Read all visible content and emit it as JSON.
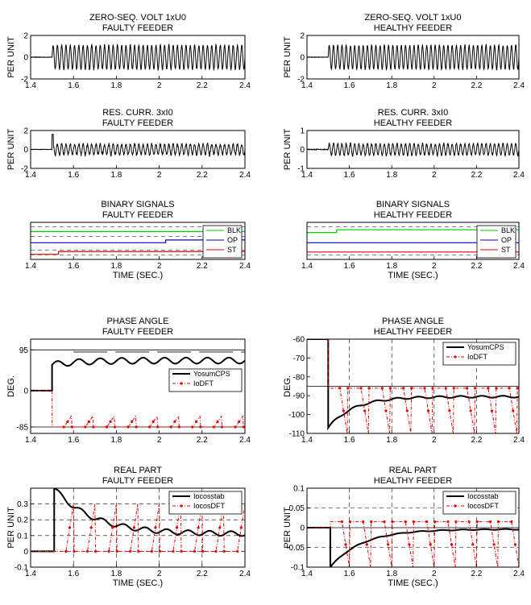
{
  "figure": {
    "xlabel": "TIME (SEC.)"
  },
  "colors": {
    "green": "#00cc00",
    "blue": "#0000ee",
    "red": "#ee0000",
    "black": "#000000"
  },
  "chart_data": [
    {
      "id": "zsv-faulty",
      "type": "line",
      "title": "ZERO-SEQ. VOLT 1xU0",
      "subtitle": "FAULTY FEEDER",
      "xlabel": "",
      "ylabel": "PER UNIT",
      "xlim": [
        1.4,
        2.4
      ],
      "ylim": [
        -2,
        2
      ],
      "xticks": [
        "1.4",
        "1.6",
        "1.8",
        "2",
        "2.2",
        "2.4"
      ],
      "yticks": [
        "-2",
        "0",
        "2"
      ],
      "grid": false,
      "series": [
        {
          "type": "oscillation",
          "color": "#000000",
          "t_start": 1.5,
          "amplitude": 1.1,
          "cycles": 45,
          "noise": 0.1,
          "offset": 0
        }
      ]
    },
    {
      "id": "zsv-healthy",
      "type": "line",
      "title": "ZERO-SEQ. VOLT 1xU0",
      "subtitle": "HEALTHY FEEDER",
      "xlabel": "",
      "ylabel": "PER UNIT",
      "xlim": [
        1.4,
        2.4
      ],
      "ylim": [
        -2,
        2
      ],
      "xticks": [
        "1.4",
        "1.6",
        "1.8",
        "2",
        "2.2",
        "2.4"
      ],
      "yticks": [
        "-2",
        "0",
        "2"
      ],
      "grid": false,
      "series": [
        {
          "type": "oscillation",
          "color": "#000000",
          "t_start": 1.5,
          "amplitude": 1.1,
          "cycles": 45,
          "noise": 0.1,
          "offset": 0
        }
      ]
    },
    {
      "id": "res-faulty",
      "type": "line",
      "title": "RES. CURR. 3xI0",
      "subtitle": "FAULTY FEEDER",
      "xlabel": "",
      "ylabel": "PER UNIT",
      "xlim": [
        1.4,
        2.4
      ],
      "ylim": [
        -2,
        2
      ],
      "xticks": [
        "1.4",
        "1.6",
        "1.8",
        "2",
        "2.2",
        "2.4"
      ],
      "yticks": [
        "-2",
        "0",
        "2"
      ],
      "hlines": [
        2,
        -2
      ],
      "grid": false,
      "series": [
        {
          "type": "oscillation",
          "color": "#000000",
          "t_start": 1.5,
          "amplitude": 0.55,
          "cycles": 45,
          "noise": 0.35,
          "offset": 0,
          "spike": 1.6
        }
      ]
    },
    {
      "id": "res-healthy",
      "type": "line",
      "title": "RES. CURR. 3xI0",
      "subtitle": "HEALTHY FEEDER",
      "xlabel": "",
      "ylabel": "PER UNIT",
      "xlim": [
        1.4,
        2.4
      ],
      "ylim": [
        -1,
        1
      ],
      "xticks": [
        "1.4",
        "1.6",
        "1.8",
        "2",
        "2.2",
        "2.4"
      ],
      "yticks": [
        "-1",
        "0",
        "1"
      ],
      "hlines": [
        1,
        -1
      ],
      "grid": false,
      "series": [
        {
          "type": "oscillation",
          "color": "#000000",
          "t_start": 1.5,
          "amplitude": 0.3,
          "cycles": 45,
          "noise": 0.15,
          "offset": 0
        }
      ]
    },
    {
      "id": "bin-faulty",
      "type": "line",
      "title": "BINARY SIGNALS",
      "subtitle": "FAULTY FEEDER",
      "xlabel": "TIME (SEC.)",
      "ylabel": "",
      "xlim": [
        1.4,
        2.4
      ],
      "ylim": [
        0,
        4
      ],
      "xticks": [
        "1.4",
        "1.6",
        "1.8",
        "2",
        "2.2",
        "2.4"
      ],
      "yticks": [],
      "hlines": [
        3.5,
        2.5,
        1.0,
        0.5
      ],
      "grid": false,
      "legend": {
        "position": "top-right",
        "entries": [
          {
            "label": "BLK",
            "color": "#00cc00"
          },
          {
            "label": "OP",
            "color": "#0000ee"
          },
          {
            "label": "ST",
            "color": "#ee0000"
          }
        ]
      },
      "series": [
        {
          "type": "step",
          "name": "BLK",
          "color": "#00cc00",
          "x": [
            1.4,
            2.4
          ],
          "y": [
            3.0,
            3.0
          ]
        },
        {
          "type": "step",
          "name": "OP",
          "color": "#0000ee",
          "x": [
            1.4,
            2.03,
            2.03,
            2.4
          ],
          "y": [
            1.8,
            1.8,
            2.1,
            2.1
          ]
        },
        {
          "type": "step",
          "name": "ST",
          "color": "#ee0000",
          "x": [
            1.4,
            1.53,
            1.53,
            2.4
          ],
          "y": [
            0.55,
            0.55,
            0.85,
            0.85
          ]
        }
      ]
    },
    {
      "id": "bin-healthy",
      "type": "line",
      "title": "BINARY SIGNALS",
      "subtitle": "HEALTHY FEEDER",
      "xlabel": "TIME (SEC.)",
      "ylabel": "",
      "xlim": [
        1.4,
        2.4
      ],
      "ylim": [
        0,
        4
      ],
      "xticks": [
        "1.4",
        "1.6",
        "1.8",
        "2",
        "2.2",
        "2.4"
      ],
      "yticks": [],
      "hlines": [
        3.5,
        0.5
      ],
      "grid": false,
      "legend": {
        "position": "top-right",
        "entries": [
          {
            "label": "BLK",
            "color": "#00cc00"
          },
          {
            "label": "OP",
            "color": "#0000ee"
          },
          {
            "label": "ST",
            "color": "#ee0000"
          }
        ]
      },
      "series": [
        {
          "type": "step",
          "name": "BLK",
          "color": "#00cc00",
          "x": [
            1.4,
            1.54,
            1.54,
            2.4
          ],
          "y": [
            2.9,
            2.9,
            3.2,
            3.2
          ]
        },
        {
          "type": "step",
          "name": "OP",
          "color": "#0000ee",
          "x": [
            1.4,
            2.4
          ],
          "y": [
            1.8,
            1.8
          ]
        },
        {
          "type": "step",
          "name": "ST",
          "color": "#ee0000",
          "x": [
            1.4,
            2.4
          ],
          "y": [
            0.8,
            0.8
          ]
        }
      ]
    },
    {
      "id": "phase-faulty",
      "type": "line",
      "title": "PHASE ANGLE",
      "subtitle": "FAULTY FEEDER",
      "xlabel": "",
      "ylabel": "DEG.",
      "xlim": [
        1.4,
        2.4
      ],
      "ylim": [
        -100,
        120
      ],
      "xticks": [
        "1.4",
        "1.6",
        "1.8",
        "2",
        "2.2",
        "2.4"
      ],
      "yticks": [
        "-85",
        "0",
        "95"
      ],
      "ytick_values": [
        -85,
        0,
        95
      ],
      "hlines_solid": [
        95,
        -85
      ],
      "dash_line": {
        "y": 90
      },
      "grid": false,
      "legend": {
        "position": "right",
        "entries": [
          {
            "label": "YosumCPS",
            "color": "#000000",
            "style": "solid"
          },
          {
            "label": "IoDFT",
            "color": "#ee0000",
            "style": "dashdot"
          }
        ]
      },
      "series": [
        {
          "type": "decay",
          "name": "YosumCPS",
          "color": "#000000",
          "t_start": 1.5,
          "y_start": 0,
          "y_peak": 60,
          "y_final": 70,
          "ripple": 7,
          "tau": 0.12
        },
        {
          "type": "sawtooth",
          "name": "IoDFT",
          "color": "#ee0000",
          "t_start": 1.5,
          "y_pre": 0,
          "base": -85,
          "top": -60,
          "period": 0.1
        }
      ]
    },
    {
      "id": "phase-healthy",
      "type": "line",
      "title": "PHASE ANGLE",
      "subtitle": "HEALTHY FEEDER",
      "xlabel": "",
      "ylabel": "DEG.",
      "xlim": [
        1.4,
        2.4
      ],
      "ylim": [
        -110,
        -60
      ],
      "xticks": [
        "1.4",
        "1.6",
        "1.8",
        "2",
        "2.2",
        "2.4"
      ],
      "yticks": [
        "-110",
        "-100",
        "-90",
        "-80",
        "-70",
        "-60"
      ],
      "ytick_values": [
        -110,
        -100,
        -90,
        -80,
        -70,
        -60
      ],
      "hlines_solid": [
        -85
      ],
      "vgrid_dashed": true,
      "grid": false,
      "legend": {
        "position": "top-right",
        "entries": [
          {
            "label": "YosumCPS",
            "color": "#000000",
            "style": "solid"
          },
          {
            "label": "IoDFT",
            "color": "#ee0000",
            "style": "dashdot"
          }
        ]
      },
      "series": [
        {
          "type": "decay",
          "name": "YosumCPS",
          "color": "#000000",
          "t_start": 1.5,
          "y_start": -60,
          "y_peak": -107,
          "y_final": -90.5,
          "ripple": 0.5,
          "tau": 0.12
        },
        {
          "type": "sawtooth",
          "name": "IoDFT",
          "color": "#ee0000",
          "t_start": 1.5,
          "y_pre": -60,
          "base": -86,
          "top": -110,
          "period": 0.1,
          "inverted": true
        }
      ]
    },
    {
      "id": "real-faulty",
      "type": "line",
      "title": "REAL PART",
      "subtitle": "FAULTY FEEDER",
      "xlabel": "TIME (SEC.)",
      "ylabel": "PER UNIT",
      "xlim": [
        1.4,
        2.4
      ],
      "ylim": [
        -0.1,
        0.4
      ],
      "xticks": [
        "1.4",
        "1.6",
        "1.8",
        "2",
        "2.2",
        "2.4"
      ],
      "yticks": [
        "-0.1",
        "0",
        "0.1",
        "0.2",
        "0.3"
      ],
      "ytick_values": [
        -0.1,
        0,
        0.1,
        0.2,
        0.3
      ],
      "hgrid_dashed": [
        0,
        0.1,
        0.2,
        0.3
      ],
      "vgrid_dashed": true,
      "grid": true,
      "legend": {
        "position": "top-right",
        "entries": [
          {
            "label": "Iocosstab",
            "color": "#000000",
            "style": "solid"
          },
          {
            "label": "IocosDFT",
            "color": "#ee0000",
            "style": "dashdot"
          }
        ]
      },
      "series": [
        {
          "type": "decay",
          "name": "Iocosstab",
          "color": "#000000",
          "t_start": 1.51,
          "y_start": 0,
          "y_peak": 0.4,
          "y_final": 0.11,
          "ripple": 0.015,
          "tau": 0.18
        },
        {
          "type": "sawtooth",
          "name": "IocosDFT",
          "color": "#ee0000",
          "t_start": 1.51,
          "y_pre": 0,
          "base": 0.0,
          "top": 0.3,
          "period": 0.1
        }
      ]
    },
    {
      "id": "real-healthy",
      "type": "line",
      "title": "REAL PART",
      "subtitle": "HEALTHY FEEDER",
      "xlabel": "TIME (SEC.)",
      "ylabel": "PER UNIT",
      "xlim": [
        1.4,
        2.4
      ],
      "ylim": [
        -0.1,
        0.1
      ],
      "xticks": [
        "1.4",
        "1.6",
        "1.8",
        "2",
        "2.2",
        "2.4"
      ],
      "yticks": [
        "-0.1",
        "-0.05",
        "0",
        "0.05",
        "0.1"
      ],
      "ytick_values": [
        -0.1,
        -0.05,
        0,
        0.05,
        0.1
      ],
      "hgrid_dashed": [
        0.05,
        -0.05
      ],
      "hlines_solid": [
        0
      ],
      "vgrid_dashed": true,
      "grid": true,
      "legend": {
        "position": "top-right",
        "entries": [
          {
            "label": "Iocosstab",
            "color": "#000000",
            "style": "solid"
          },
          {
            "label": "IocosDFT",
            "color": "#ee0000",
            "style": "dashdot"
          }
        ]
      },
      "series": [
        {
          "type": "decay",
          "name": "Iocosstab",
          "color": "#000000",
          "t_start": 1.51,
          "y_start": 0,
          "y_peak": -0.1,
          "y_final": -0.004,
          "ripple": 0.001,
          "tau": 0.15
        },
        {
          "type": "sawtooth",
          "name": "IocosDFT",
          "color": "#ee0000",
          "t_start": 1.51,
          "y_pre": 0,
          "base": 0.015,
          "top": -0.1,
          "period": 0.1,
          "inverted": true
        }
      ]
    }
  ]
}
